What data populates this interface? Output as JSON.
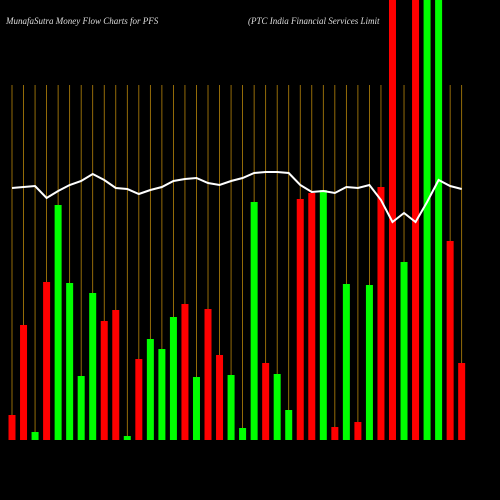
{
  "chart_data": {
    "type": "bar",
    "title": "MunafaSutra  Money Flow  Charts for PFS",
    "subtitle": "(PTC India  Financial Services Limit",
    "categories": [
      null,
      null,
      null,
      null,
      null,
      null,
      null,
      null,
      null,
      null,
      null,
      null,
      null,
      null,
      null,
      null,
      null,
      null,
      null,
      null,
      null,
      null,
      null,
      null,
      null,
      null,
      null,
      null,
      null,
      null,
      null,
      null,
      null,
      null,
      null,
      null,
      null,
      null,
      null,
      null
    ],
    "ylim": [
      0,
      440
    ],
    "grid_color": "#b8860b",
    "series": [
      {
        "type": "bar",
        "values": [
          25,
          115,
          8,
          158,
          235,
          157,
          64,
          147,
          119,
          130,
          4,
          81,
          101,
          91,
          123,
          136,
          63,
          131,
          85,
          65,
          12,
          238,
          77,
          66,
          30,
          241,
          247,
          250,
          13,
          156,
          18,
          155,
          253,
          440,
          178,
          440,
          440,
          440,
          199,
          77
        ],
        "colors": [
          "#ff0000",
          "#ff0000",
          "#00ff00",
          "#ff0000",
          "#00ff00",
          "#00ff00",
          "#00ff00",
          "#00ff00",
          "#ff0000",
          "#ff0000",
          "#00ff00",
          "#ff0000",
          "#00ff00",
          "#00ff00",
          "#00ff00",
          "#ff0000",
          "#00ff00",
          "#ff0000",
          "#ff0000",
          "#00ff00",
          "#00ff00",
          "#00ff00",
          "#ff0000",
          "#00ff00",
          "#00ff00",
          "#ff0000",
          "#ff0000",
          "#00ff00",
          "#ff0000",
          "#00ff00",
          "#ff0000",
          "#00ff00",
          "#ff0000",
          "#ff0000",
          "#00ff00",
          "#ff0000",
          "#00ff00",
          "#00ff00",
          "#ff0000",
          "#ff0000"
        ]
      },
      {
        "type": "line",
        "color": "#ffffff",
        "values": [
          252,
          253,
          254,
          242,
          249,
          255,
          259,
          266,
          260,
          252,
          251,
          246,
          250,
          253,
          259,
          261,
          262,
          257,
          255,
          259,
          262,
          267,
          268,
          268,
          267,
          255,
          248,
          249,
          247,
          253,
          252,
          255,
          240,
          218,
          227,
          218,
          238,
          260,
          254,
          251
        ]
      }
    ]
  }
}
